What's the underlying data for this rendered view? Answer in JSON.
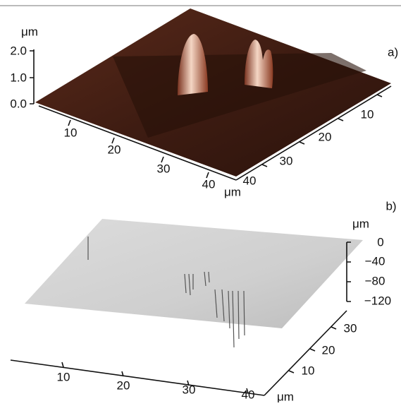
{
  "panels": [
    {
      "label": "a)",
      "z_unit": "μm",
      "z_ticks": [
        "2.0",
        "1.0",
        "0.0"
      ],
      "x_ticks": [
        "10",
        "20",
        "30",
        "40"
      ],
      "x_unit": "μm",
      "y_ticks": [
        "40",
        "30",
        "20",
        "10"
      ]
    },
    {
      "label": "b)",
      "z_unit": "μm",
      "z_ticks": [
        "0",
        "−40",
        "−80",
        "−120"
      ],
      "x_ticks": [
        "10",
        "20",
        "30",
        "40"
      ],
      "x_unit": "μm",
      "y_ticks": [
        "10",
        "20",
        "30"
      ]
    }
  ]
}
